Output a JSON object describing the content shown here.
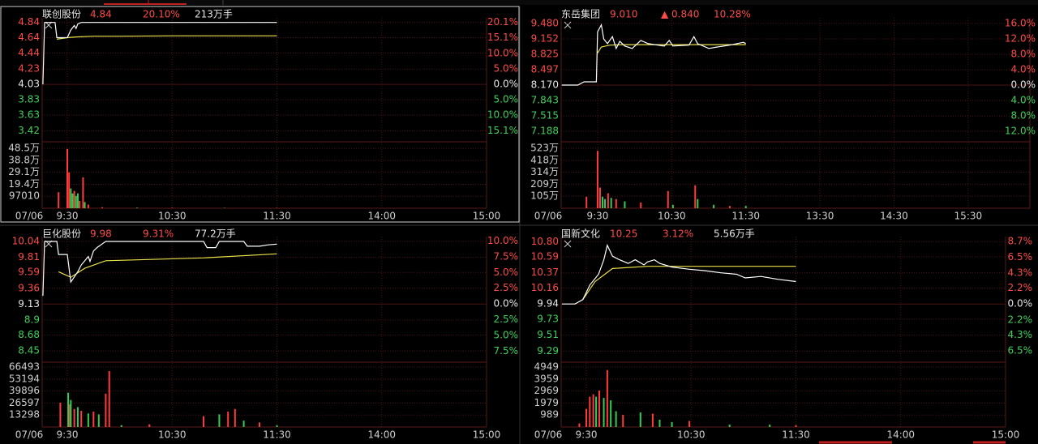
{
  "chart_data": [
    {
      "type": "line",
      "name": "联创股份",
      "price": "4.84",
      "change_pct": "20.10%",
      "volume_total": "213万手",
      "date": "07/06",
      "xlim": [
        -14.4,
        240
      ],
      "xticks": [
        {
          "value": 0,
          "label": "9:30"
        },
        {
          "value": 60,
          "label": "10:30"
        },
        {
          "value": 120,
          "label": "11:30"
        },
        {
          "value": 180,
          "label": "14:00"
        },
        {
          "value": 240,
          "label": "15:00"
        }
      ],
      "ylim": [
        3.3,
        4.9
      ],
      "yticks": [
        4.84,
        4.64,
        4.44,
        4.23,
        4.03,
        3.83,
        3.63,
        3.42
      ],
      "y2lim": [
        -18.1,
        21.6
      ],
      "y2ticks": [
        {
          "value": 20.1,
          "label": "20.1%"
        },
        {
          "value": 15.1,
          "label": "15.1%"
        },
        {
          "value": 10.0,
          "label": "10.0%"
        },
        {
          "value": 5.0,
          "label": "5.0%"
        },
        {
          "value": 0,
          "label": "0.0%"
        },
        {
          "value": -5.0,
          "label": "5.0%"
        },
        {
          "value": -10.0,
          "label": "10.0%"
        },
        {
          "value": -15.1,
          "label": "15.1%"
        }
      ],
      "price_line": {
        "color": "#ffffff",
        "x": [
          -14,
          -13,
          -7,
          -6,
          0,
          2,
          4,
          5,
          6,
          8,
          120
        ],
        "values": [
          4.03,
          4.84,
          4.84,
          4.64,
          4.64,
          4.74,
          4.8,
          4.76,
          4.82,
          4.84,
          4.84
        ]
      },
      "avg_line": {
        "color": "#e8e04a",
        "x": [
          -6,
          0,
          5,
          15,
          30,
          60,
          120
        ],
        "values": [
          4.62,
          4.64,
          4.65,
          4.66,
          4.66,
          4.665,
          4.665
        ]
      },
      "volume": {
        "ylim": [
          0,
          525000
        ],
        "yticks": [
          {
            "value": 485000,
            "label": "48.5万"
          },
          {
            "value": 388000,
            "label": "38.8万"
          },
          {
            "value": 291000,
            "label": "29.1万"
          },
          {
            "value": 194000,
            "label": "19.4万"
          },
          97010
        ],
        "x": [
          -5,
          0,
          1,
          2,
          3,
          4,
          5,
          6,
          7,
          9,
          10,
          12,
          20,
          40,
          60,
          90,
          120
        ],
        "values": [
          130000,
          480000,
          290000,
          160000,
          120000,
          140000,
          100000,
          120000,
          60000,
          250000,
          50000,
          30000,
          8000,
          5000,
          4000,
          3000,
          3000
        ],
        "colors": [
          "#ff3b3b",
          "#ff3b3b",
          "#ff3b3b",
          "#33cc55",
          "#33cc55",
          "#ff3b3b",
          "#33cc55",
          "#33cc55",
          "#ff3b3b",
          "#ff3b3b",
          "#33cc55",
          "#ff3b3b",
          "#ff3b3b",
          "#33cc55",
          "#ff3b3b",
          "#33cc55",
          "#ff3b3b"
        ]
      }
    },
    {
      "type": "line",
      "name": "东岳集团",
      "price": "9.010",
      "change": "▲ 0.840",
      "change_pct": "10.28%",
      "date": "07/06",
      "xlim": [
        -29.5,
        350
      ],
      "xticks": [
        {
          "value": 0,
          "label": "9:30"
        },
        {
          "value": 60,
          "label": "10:30"
        },
        {
          "value": 120,
          "label": "11:30"
        },
        {
          "value": 180,
          "label": "13:30"
        },
        {
          "value": 240,
          "label": "14:30"
        },
        {
          "value": 300,
          "label": "15:30"
        }
      ],
      "ylim": [
        7.0,
        9.6
      ],
      "yticks": [
        {
          "value": 9.48,
          "label": "9.480"
        },
        9.152,
        8.825,
        8.497,
        {
          "value": 8.17,
          "label": "8.170"
        },
        7.843,
        7.515,
        7.188
      ],
      "y2lim": [
        -14.3,
        17.5
      ],
      "y2ticks": [
        {
          "value": 16,
          "label": "16.0%"
        },
        {
          "value": 12,
          "label": "12.0%"
        },
        {
          "value": 8,
          "label": "8.0%"
        },
        {
          "value": 4,
          "label": "4.0%"
        },
        {
          "value": 0,
          "label": "0.0%"
        },
        {
          "value": -4,
          "label": "4.0%"
        },
        {
          "value": -8,
          "label": "8.0%"
        },
        {
          "value": -12,
          "label": "12.0%"
        }
      ],
      "price_line": {
        "color": "#ffffff",
        "x": [
          -29,
          -16,
          -11,
          -1,
          0,
          3,
          5,
          8,
          12,
          15,
          18,
          22,
          28,
          35,
          41,
          54,
          58,
          61,
          74,
          78,
          81,
          90,
          97,
          107,
          118,
          120
        ],
        "values": [
          8.17,
          8.17,
          8.24,
          8.24,
          9.3,
          9.45,
          9.15,
          9.05,
          9.2,
          8.95,
          9.1,
          9.0,
          8.95,
          9.12,
          9.05,
          9.0,
          9.12,
          9.0,
          9.02,
          9.2,
          9.05,
          8.95,
          8.98,
          9.02,
          9.08,
          9.05
        ]
      },
      "avg_line": {
        "color": "#e8e04a",
        "x": [
          0,
          3,
          10,
          20,
          60,
          120
        ],
        "values": [
          8.85,
          8.98,
          9.02,
          9.03,
          9.03,
          9.03
        ]
      },
      "volume": {
        "ylim": [
          0,
          5650000
        ],
        "yticks": [
          {
            "value": 5230000,
            "label": "523万"
          },
          {
            "value": 4180000,
            "label": "418万"
          },
          {
            "value": 3140000,
            "label": "314万"
          },
          {
            "value": 2090000,
            "label": "209万"
          },
          {
            "value": 1050000,
            "label": "105万"
          }
        ],
        "x": [
          -9,
          0,
          2,
          4,
          6,
          8.5,
          11,
          15,
          22,
          35,
          57,
          61,
          79,
          81,
          94,
          107,
          120
        ],
        "values": [
          1000000,
          5000000,
          1800000,
          1000000,
          800000,
          1300000,
          900000,
          800000,
          600000,
          500000,
          1500000,
          300000,
          2000000,
          800000,
          300000,
          200000,
          200000
        ],
        "colors": [
          "#ff3b3b",
          "#ff3b3b",
          "#ff3b3b",
          "#33cc55",
          "#33cc55",
          "#ff3b3b",
          "#33cc55",
          "#ff3b3b",
          "#33cc55",
          "#ff3b3b",
          "#ff3b3b",
          "#33cc55",
          "#ff3b3b",
          "#33cc55",
          "#33cc55",
          "#ff3b3b",
          "#33cc55"
        ]
      }
    },
    {
      "type": "line",
      "name": "巨化股份",
      "price": "9.98",
      "change_pct": "9.31%",
      "volume_total": "77.2万手",
      "date": "07/06",
      "xlim": [
        -14.4,
        240
      ],
      "xticks": [
        {
          "value": 0,
          "label": "9:30"
        },
        {
          "value": 60,
          "label": "10:30"
        },
        {
          "value": 120,
          "label": "11:30"
        },
        {
          "value": 180,
          "label": "14:00"
        },
        {
          "value": 240,
          "label": "15:00"
        }
      ],
      "ylim": [
        8.31,
        10.11
      ],
      "yticks": [
        10.04,
        9.81,
        9.59,
        9.36,
        9.13,
        8.9,
        8.68,
        8.45
      ],
      "y2lim": [
        -9.0,
        10.7
      ],
      "y2ticks": [
        {
          "value": 10,
          "label": "10.0%"
        },
        {
          "value": 7.5,
          "label": "7.5%"
        },
        {
          "value": 5,
          "label": "5.0%"
        },
        {
          "value": 2.5,
          "label": "2.5%"
        },
        {
          "value": 0,
          "label": "0.0%"
        },
        {
          "value": -2.5,
          "label": "2.5%"
        },
        {
          "value": -5,
          "label": "5.0%"
        },
        {
          "value": -7.5,
          "label": "7.5%"
        }
      ],
      "price_line": {
        "color": "#ffffff",
        "x": [
          -14,
          -13,
          -6,
          -5,
          0,
          2,
          6,
          8,
          12,
          13,
          15,
          17,
          22,
          78,
          80,
          85,
          87,
          101,
          103,
          110,
          115,
          120
        ],
        "values": [
          9.25,
          10.04,
          10.04,
          9.85,
          9.85,
          9.45,
          9.6,
          9.7,
          9.82,
          9.75,
          9.9,
          9.95,
          10.04,
          10.04,
          9.95,
          9.95,
          10.04,
          10.04,
          9.97,
          9.97,
          9.99,
          10.0
        ]
      },
      "avg_line": {
        "color": "#e8e04a",
        "x": [
          -5,
          2,
          10,
          22,
          78,
          120
        ],
        "values": [
          9.6,
          9.52,
          9.65,
          9.76,
          9.8,
          9.86
        ]
      },
      "volume": {
        "ylim": [
          0,
          71900
        ],
        "yticks": [
          66493,
          53194,
          39896,
          26597,
          13298
        ],
        "x": [
          -4,
          0.5,
          1.4,
          2,
          4,
          6,
          8,
          12,
          15,
          18,
          22,
          24,
          31,
          47,
          78,
          87,
          92,
          96,
          101,
          110,
          120
        ],
        "values": [
          27000,
          38000,
          25000,
          30000,
          20000,
          22000,
          18000,
          15000,
          17000,
          14000,
          37000,
          62000,
          2000,
          3000,
          12000,
          14000,
          17000,
          20000,
          7000,
          5000,
          2000
        ],
        "colors": [
          "#ff3b3b",
          "#33cc55",
          "#ff3b3b",
          "#33cc55",
          "#ff3b3b",
          "#33cc55",
          "#ff3b3b",
          "#33cc55",
          "#ff3b3b",
          "#33cc55",
          "#ff3b3b",
          "#ff3b3b",
          "#33cc55",
          "#ff3b3b",
          "#ff3b3b",
          "#33cc55",
          "#ff3b3b",
          "#ff3b3b",
          "#33cc55",
          "#ff3b3b",
          "#33cc55"
        ]
      }
    },
    {
      "type": "line",
      "name": "国新文化",
      "price": "10.25",
      "change_pct": "3.12%",
      "volume_total": "5.56万手",
      "date": "07/06",
      "xlim": [
        -14.4,
        240
      ],
      "xticks": [
        {
          "value": 0,
          "label": "9:30"
        },
        {
          "value": 60,
          "label": "10:30"
        },
        {
          "value": 120,
          "label": "11:30"
        },
        {
          "value": 180,
          "label": "14:00"
        },
        {
          "value": 240,
          "label": "15:00"
        }
      ],
      "ylim": [
        9.16,
        10.87
      ],
      "yticks": [
        {
          "value": 10.8,
          "label": "10.80"
        },
        10.59,
        10.37,
        10.16,
        9.94,
        9.73,
        9.51,
        9.29
      ],
      "y2lim": [
        -7.85,
        9.36
      ],
      "y2ticks": [
        {
          "value": 8.7,
          "label": "8.7%"
        },
        {
          "value": 6.5,
          "label": "6.5%"
        },
        {
          "value": 4.3,
          "label": "4.3%"
        },
        {
          "value": 2.2,
          "label": "2.2%"
        },
        {
          "value": 0,
          "label": "0.0%"
        },
        {
          "value": -2.2,
          "label": "2.2%"
        },
        {
          "value": -4.3,
          "label": "4.3%"
        },
        {
          "value": -6.5,
          "label": "6.5%"
        }
      ],
      "price_line": {
        "color": "#ffffff",
        "x": [
          -14,
          -6.5,
          -2,
          2,
          7,
          10,
          12,
          15,
          19,
          24,
          28,
          33,
          35,
          39,
          42,
          49,
          59,
          68,
          77,
          86,
          91,
          100,
          110,
          120
        ],
        "values": [
          9.94,
          9.94,
          10.0,
          10.2,
          10.35,
          10.55,
          10.75,
          10.6,
          10.55,
          10.5,
          10.55,
          10.48,
          10.52,
          10.55,
          10.5,
          10.45,
          10.42,
          10.4,
          10.37,
          10.35,
          10.3,
          10.32,
          10.28,
          10.25
        ]
      },
      "avg_line": {
        "color": "#e8e04a",
        "x": [
          -2,
          5,
          15,
          35,
          60,
          120
        ],
        "values": [
          10.0,
          10.25,
          10.43,
          10.46,
          10.46,
          10.46
        ]
      },
      "volume": {
        "ylim": [
          0,
          5350
        ],
        "yticks": [
          4949,
          3959,
          2969,
          1979,
          989
        ],
        "x": [
          -4,
          0,
          2,
          4,
          5.6,
          7.4,
          10,
          12,
          14,
          17,
          21,
          31,
          38,
          42,
          49,
          59,
          82,
          105,
          120
        ],
        "values": [
          300,
          1500,
          2500,
          2700,
          2500,
          3000,
          2400,
          4700,
          2200,
          1300,
          1000,
          1200,
          1100,
          600,
          400,
          500,
          200,
          200,
          150
        ],
        "colors": [
          "#ff3b3b",
          "#ff3b3b",
          "#ff3b3b",
          "#ff3b3b",
          "#33cc55",
          "#ff3b3b",
          "#33cc55",
          "#ff3b3b",
          "#33cc55",
          "#33cc55",
          "#ff3b3b",
          "#33cc55",
          "#ff3b3b",
          "#33cc55",
          "#33cc55",
          "#ff3b3b",
          "#33cc55",
          "#33cc55",
          "#ff3b3b"
        ]
      }
    }
  ]
}
